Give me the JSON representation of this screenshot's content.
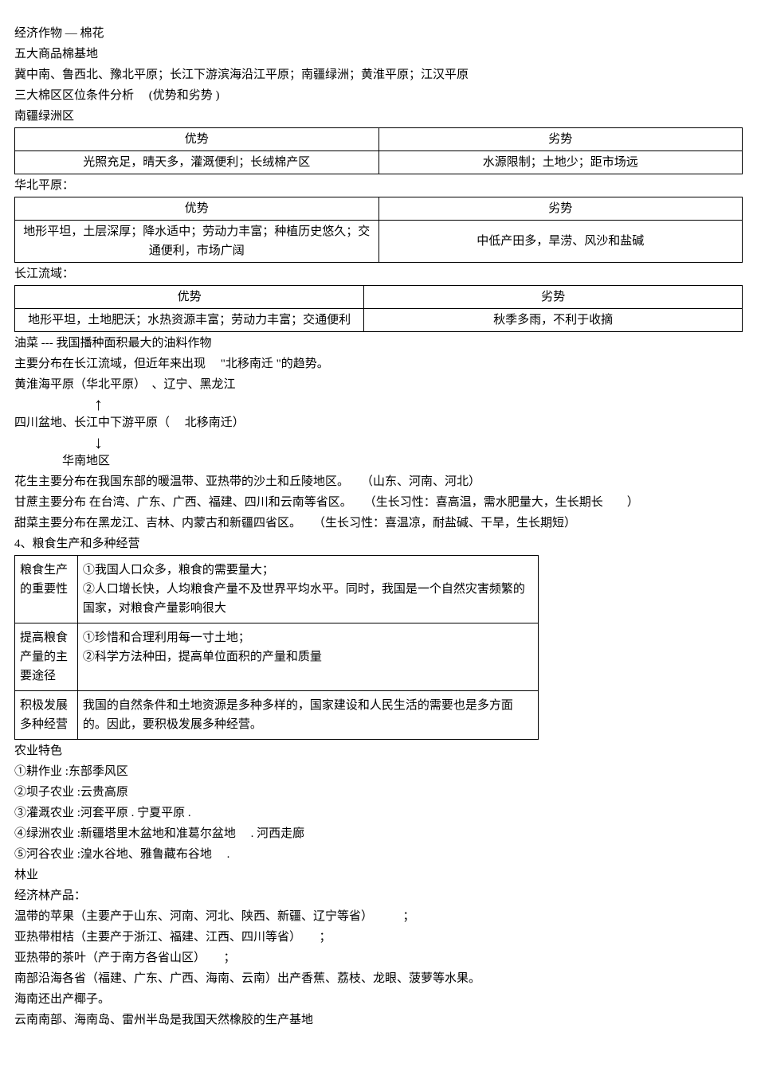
{
  "intro": {
    "l1": "经济作物 — 棉花",
    "l2": "五大商品棉基地",
    "l3": "冀中南、鲁西北、豫北平原；长江下游滨海沿江平原；南疆绿洲；黄淮平原；江汉平原",
    "l4": "三大棉区区位条件分析 　(优势和劣势 )",
    "l5": "南疆绿洲区"
  },
  "table1": {
    "h1": "优势",
    "h2": "劣势",
    "c1": "光照充足，晴天多，灌溉便利；长绒棉产区",
    "c2": "水源限制；土地少；距市场远"
  },
  "mid1": "华北平原：",
  "table2": {
    "h1": "优势",
    "h2": "劣势",
    "c1": "地形平坦，土层深厚；降水适中；劳动力丰富；种植历史悠久；交通便利，市场广阔",
    "c2": "中低产田多，旱涝、风沙和盐碱"
  },
  "mid2": "长江流域：",
  "table3": {
    "h1": "优势",
    "h2": "劣势",
    "c1": "地形平坦，土地肥沃；水热资源丰富；劳动力丰富；交通便利",
    "c2": "秋季多雨，不利于收摘"
  },
  "oil": {
    "l1": "油菜 --- 我国播种面积最大的油料作物",
    "l2": "主要分布在长江流域，但近年来出现　 \"北移南迁 \"的趋势。",
    "l3": "黄淮海平原（华北平原）　、辽宁、黑龙江",
    "l4": "四川盆地、长江中下游平原（　 北移南迁）",
    "l5": "华南地区"
  },
  "crops": {
    "l1": "花生主要分布在我国东部的暖温带、亚热带的沙土和丘陵地区。　　（山东、河南、河北）",
    "l2": "甘蔗主要分布 在台湾、广东、广西、福建、四川和云南等省区。　　（生长习性：喜高温，需水肥量大，生长期长　　）",
    "l3": "甜菜主要分布在黑龙江、吉林、内蒙古和新疆四省区。　　（生长习性：喜温凉，耐盐碱、干旱，生长期短）"
  },
  "section4": "4、粮食生产和多种经营",
  "grain": {
    "r1": {
      "label": "粮食生产的重要性",
      "content": "①我国人口众多，粮食的需要量大；\n②人口增长快，人均粮食产量不及世界平均水平。同时，我国是一个自然灾害频繁的国家，对粮食产量影响很大"
    },
    "r2": {
      "label": "提高粮食产量的主要途径",
      "content": "①珍惜和合理利用每一寸土地；\n②科学方法种田，提高单位面积的产量和质量"
    },
    "r3": {
      "label": "积极发展多种经营",
      "content": "我国的自然条件和土地资源是多种多样的，国家建设和人民生活的需要也是多方面的。因此，要积极发展多种经营。"
    }
  },
  "agri": {
    "title": "农业特色",
    "l1": "①耕作业 :东部季风区",
    "l2": "②坝子农业 :云贵高原",
    "l3": "③灌溉农业 :河套平原 . 宁夏平原 .",
    "l4": "④绿洲农业 :新疆塔里木盆地和准葛尔盆地　 . 河西走廊",
    "l5": "⑤河谷农业 :湟水谷地、雅鲁藏布谷地　 ."
  },
  "forestry": {
    "l1": "林业",
    "l2": "经济林产品：",
    "l3": "温带的苹果（主要产于山东、河南、河北、陕西、新疆、辽宁等省）　　　；",
    "l4": "亚热带柑桔（主要产于浙江、福建、江西、四川等省）　　；",
    "l5": "亚热带的茶叶（产于南方各省山区）　　；",
    "l6": "南部沿海各省（福建、广东、广西、海南、云南）出产香蕉、荔枝、龙眼、菠萝等水果。",
    "l7": "海南还出产椰子。",
    "l8": "云南南部、海南岛、雷州半岛是我国天然橡胶的生产基地"
  }
}
